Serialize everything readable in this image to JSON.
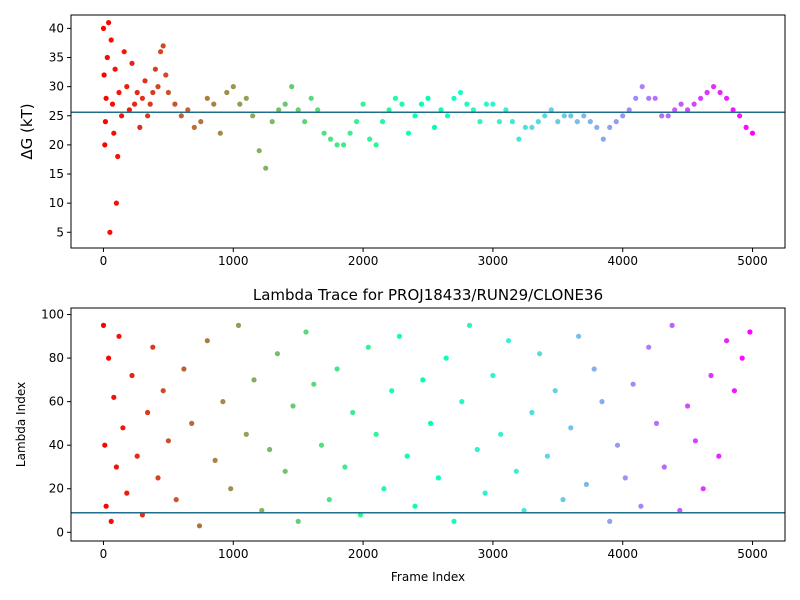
{
  "chart_data": [
    {
      "type": "scatter",
      "title": "",
      "xlabel": "",
      "ylabel": "ΔG (kT)",
      "xlim": [
        -250,
        5250
      ],
      "ylim": [
        2.3,
        42.3
      ],
      "xticks": [
        0,
        1000,
        2000,
        3000,
        4000,
        5000
      ],
      "yticks": [
        5,
        10,
        15,
        20,
        25,
        30,
        35,
        40
      ],
      "grid": false,
      "legend": "none",
      "colormap": "rainbow (red at frame 0 to violet at frame 5000)",
      "hline": 25.6,
      "series": [
        {
          "x": [
            0,
            5,
            10,
            15,
            20,
            30,
            40,
            50,
            60,
            70,
            80,
            90,
            100,
            110,
            120,
            140,
            160,
            180,
            200,
            220,
            240,
            260,
            280,
            300,
            320,
            340,
            360,
            380,
            400,
            420,
            440,
            460,
            480,
            500,
            550,
            600,
            650,
            700,
            750,
            800,
            850,
            900,
            950,
            1000,
            1050,
            1100,
            1150,
            1200,
            1250,
            1300,
            1350,
            1400,
            1450,
            1500,
            1550,
            1600,
            1650,
            1700,
            1750,
            1800,
            1850,
            1900,
            1950,
            2000,
            2050,
            2100,
            2150,
            2200,
            2250,
            2300,
            2350,
            2400,
            2450,
            2500,
            2550,
            2600,
            2650,
            2700,
            2750,
            2800,
            2850,
            2900,
            2950,
            3000,
            3050,
            3100,
            3150,
            3200,
            3250,
            3300,
            3350,
            3400,
            3450,
            3500,
            3550,
            3600,
            3650,
            3700,
            3750,
            3800,
            3850,
            3900,
            3950,
            4000,
            4050,
            4100,
            4150,
            4200,
            4250,
            4300,
            4350,
            4400,
            4450,
            4500,
            4550,
            4600,
            4650,
            4700,
            4750,
            4800,
            4850,
            4900,
            4950,
            5000
          ],
          "y": [
            40,
            32,
            20,
            24,
            28,
            35,
            41,
            5,
            38,
            27,
            22,
            33,
            10,
            18,
            29,
            25,
            36,
            30,
            26,
            34,
            27,
            29,
            23,
            28,
            31,
            25,
            27,
            29,
            33,
            30,
            36,
            37,
            32,
            29,
            27,
            25,
            26,
            23,
            24,
            28,
            27,
            22,
            29,
            30,
            27,
            28,
            25,
            19,
            16,
            24,
            26,
            27,
            30,
            26,
            24,
            28,
            26,
            22,
            21,
            20,
            20,
            22,
            24,
            27,
            21,
            20,
            24,
            26,
            28,
            27,
            22,
            25,
            27,
            28,
            23,
            26,
            25,
            28,
            29,
            27,
            26,
            24,
            27,
            27,
            24,
            26,
            24,
            21,
            23,
            23,
            24,
            25,
            26,
            24,
            25,
            25,
            24,
            25,
            24,
            23,
            21,
            23,
            24,
            25,
            26,
            28,
            30,
            28,
            28,
            25,
            25,
            26,
            27,
            26,
            27,
            28,
            29,
            30,
            29,
            28,
            26,
            25,
            23,
            22
          ]
        }
      ]
    },
    {
      "type": "scatter",
      "title": "Lambda Trace for PROJ18433/RUN29/CLONE36",
      "xlabel": "Frame Index",
      "ylabel": "Lambda Index",
      "xlim": [
        -250,
        5250
      ],
      "ylim": [
        -4,
        103
      ],
      "xticks": [
        0,
        1000,
        2000,
        3000,
        4000,
        5000
      ],
      "yticks": [
        0,
        20,
        40,
        60,
        80,
        100
      ],
      "grid": false,
      "legend": "none",
      "colormap": "rainbow (red at frame 0 to violet at frame 5000)",
      "hline": 9,
      "series": [
        {
          "x": [
            0,
            10,
            20,
            40,
            60,
            80,
            100,
            120,
            150,
            180,
            220,
            260,
            300,
            340,
            380,
            420,
            460,
            500,
            560,
            620,
            680,
            740,
            800,
            860,
            920,
            980,
            1040,
            1100,
            1160,
            1220,
            1280,
            1340,
            1400,
            1460,
            1500,
            1560,
            1620,
            1680,
            1740,
            1800,
            1860,
            1920,
            1980,
            2040,
            2100,
            2160,
            2220,
            2280,
            2340,
            2400,
            2460,
            2520,
            2580,
            2640,
            2700,
            2760,
            2820,
            2880,
            2940,
            3000,
            3060,
            3120,
            3180,
            3240,
            3300,
            3360,
            3420,
            3480,
            3540,
            3600,
            3660,
            3720,
            3780,
            3840,
            3900,
            3960,
            4020,
            4080,
            4140,
            4200,
            4260,
            4320,
            4380,
            4440,
            4500,
            4560,
            4620,
            4680,
            4740,
            4800,
            4860,
            4920,
            4980
          ],
          "y": [
            95,
            40,
            12,
            80,
            5,
            62,
            30,
            90,
            48,
            18,
            72,
            35,
            8,
            55,
            85,
            25,
            65,
            42,
            15,
            75,
            50,
            3,
            88,
            33,
            60,
            20,
            95,
            45,
            70,
            10,
            38,
            82,
            28,
            58,
            5,
            92,
            68,
            40,
            15,
            75,
            30,
            55,
            8,
            85,
            45,
            20,
            65,
            90,
            35,
            12,
            70,
            50,
            25,
            80,
            5,
            60,
            95,
            38,
            18,
            72,
            45,
            88,
            28,
            10,
            55,
            82,
            35,
            65,
            15,
            48,
            90,
            22,
            75,
            60,
            5,
            40,
            25,
            68,
            12,
            85,
            50,
            30,
            95,
            10,
            58,
            42,
            20,
            72,
            35,
            88,
            65,
            80,
            92
          ]
        }
      ]
    }
  ]
}
